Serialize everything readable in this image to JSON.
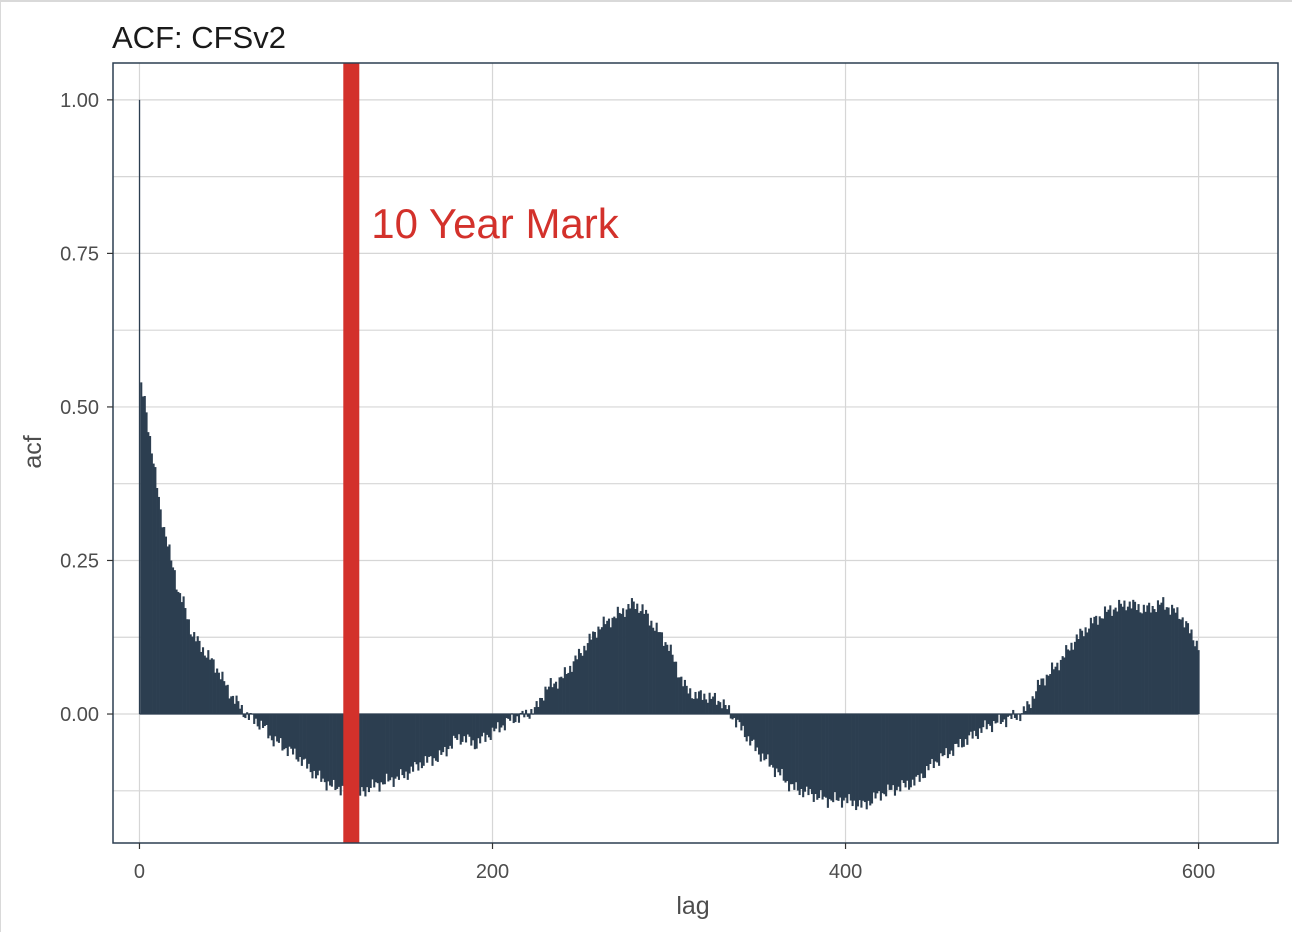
{
  "chart_data": {
    "type": "bar",
    "title": "ACF: CFSv2",
    "xlabel": "lag",
    "ylabel": "acf",
    "xlim": [
      -15,
      645
    ],
    "ylim": [
      -0.21,
      1.06
    ],
    "x_ticks": [
      0,
      200,
      400,
      600
    ],
    "x_tick_labels": [
      "0",
      "200",
      "400",
      "600"
    ],
    "y_ticks": [
      0,
      0.25,
      0.5,
      0.75,
      1.0
    ],
    "y_tick_labels": [
      "0.00",
      "0.25",
      "0.50",
      "0.75",
      "1.00"
    ],
    "grid": true,
    "bar_color": "#2c3e50",
    "series": [
      {
        "lag": [
          0,
          1,
          2,
          3,
          4,
          5,
          6,
          8,
          10,
          12,
          15,
          18,
          20,
          22,
          25,
          28,
          30,
          35,
          40,
          45,
          50,
          55,
          60,
          65,
          70,
          75,
          80,
          90,
          100,
          110,
          115,
          120,
          125,
          130,
          140,
          150,
          160,
          170,
          180,
          185,
          190,
          200,
          210,
          220,
          225,
          230,
          235,
          240,
          250,
          260,
          270,
          275,
          280,
          285,
          290,
          300,
          305,
          310,
          315,
          320,
          330,
          335,
          340,
          345,
          350,
          360,
          370,
          380,
          390,
          400,
          410,
          420,
          430,
          440,
          450,
          460,
          470,
          480,
          490,
          500,
          505,
          510,
          520,
          530,
          540,
          550,
          560,
          570,
          580,
          590,
          600
        ],
        "acf": [
          1.0,
          0.54,
          0.52,
          0.51,
          0.49,
          0.47,
          0.45,
          0.41,
          0.37,
          0.33,
          0.29,
          0.25,
          0.23,
          0.2,
          0.18,
          0.15,
          0.13,
          0.11,
          0.09,
          0.07,
          0.04,
          0.02,
          0.0,
          -0.01,
          -0.02,
          -0.04,
          -0.05,
          -0.07,
          -0.1,
          -0.12,
          -0.12,
          -0.12,
          -0.13,
          -0.12,
          -0.11,
          -0.1,
          -0.08,
          -0.07,
          -0.04,
          -0.04,
          -0.05,
          -0.03,
          -0.01,
          0.0,
          0.01,
          0.04,
          0.05,
          0.06,
          0.1,
          0.14,
          0.16,
          0.17,
          0.18,
          0.17,
          0.15,
          0.11,
          0.07,
          0.04,
          0.03,
          0.03,
          0.02,
          0.0,
          -0.02,
          -0.04,
          -0.06,
          -0.09,
          -0.12,
          -0.13,
          -0.14,
          -0.14,
          -0.15,
          -0.13,
          -0.12,
          -0.11,
          -0.08,
          -0.06,
          -0.04,
          -0.02,
          -0.01,
          0.0,
          0.02,
          0.05,
          0.08,
          0.12,
          0.15,
          0.17,
          0.18,
          0.17,
          0.18,
          0.16,
          0.11
        ]
      }
    ],
    "annotation": {
      "vline_x": 120,
      "label": "10 Year Mark",
      "color": "#d3312b"
    }
  }
}
